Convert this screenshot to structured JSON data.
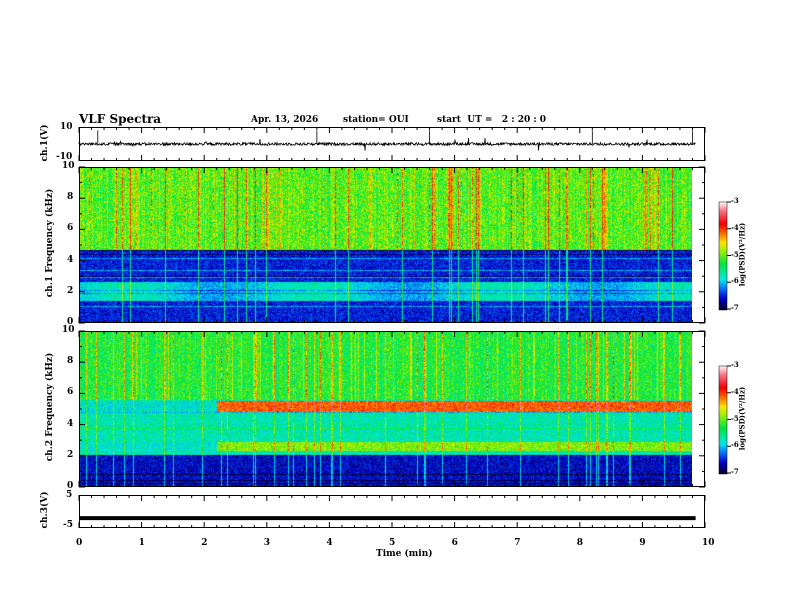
{
  "header": {
    "title": "VLF Spectra",
    "date": "Apr. 13, 2026",
    "station": "station= OUI",
    "start": "start  UT =   2 : 20 : 0"
  },
  "colors": {
    "trace": "#000000",
    "background": "#ffffff"
  },
  "chart_data": [
    {
      "type": "line",
      "name": "ch1-waveform",
      "ylabel": "ch.1(V)",
      "ylim": [
        -10,
        10
      ],
      "yticks": [
        "10",
        "-10"
      ],
      "xlim": [
        0,
        10
      ],
      "data_end_min": 9.85,
      "baseline": 0,
      "description_values": {
        "typical_amplitude": 1,
        "spike_times_min": [
          0.3,
          3.8,
          5.6,
          8.2,
          9.8
        ]
      }
    },
    {
      "type": "heatmap",
      "name": "ch1-spectrogram",
      "ylabel": "ch.1 Frequency (kHz)",
      "ylim": [
        0,
        10
      ],
      "yticks": [
        "0",
        "2",
        "4",
        "6",
        "8",
        "10"
      ],
      "xlim": [
        0,
        10
      ],
      "colorbar": {
        "label": "log(PSD)(V²/Hz)",
        "range": [
          -7,
          -3
        ],
        "ticks": [
          "-3",
          "-4",
          "-5",
          "-6",
          "-7"
        ]
      },
      "features": {
        "sferic_band_above_kHz": 4.7,
        "noise_band_kHz": [
          1.5,
          2.5
        ]
      }
    },
    {
      "type": "heatmap",
      "name": "ch2-spectrogram",
      "ylabel": "ch.2 Frequency (kHz)",
      "ylim": [
        0,
        10
      ],
      "yticks": [
        "0",
        "2",
        "4",
        "6",
        "8",
        "10"
      ],
      "xlim": [
        0,
        10
      ],
      "colorbar": {
        "label": "log(PSD)(V²/Hz)",
        "range": [
          -7,
          -3
        ],
        "ticks": [
          "-3",
          "-4",
          "-5",
          "-6",
          "-7"
        ]
      },
      "features": {
        "emission_bands_kHz": [
          5.1,
          2.6
        ],
        "emission_start_min": 2.2
      }
    },
    {
      "type": "line",
      "name": "ch3-waveform",
      "ylabel": "ch.3(V)",
      "ylim": [
        -5,
        5
      ],
      "yticks": [
        "5",
        "-5"
      ],
      "xlim": [
        0,
        10
      ],
      "constant_value": -2,
      "xlabel": "Time  (min)",
      "xticks": [
        "0",
        "1",
        "2",
        "3",
        "4",
        "5",
        "6",
        "7",
        "8",
        "9",
        "10"
      ]
    }
  ]
}
